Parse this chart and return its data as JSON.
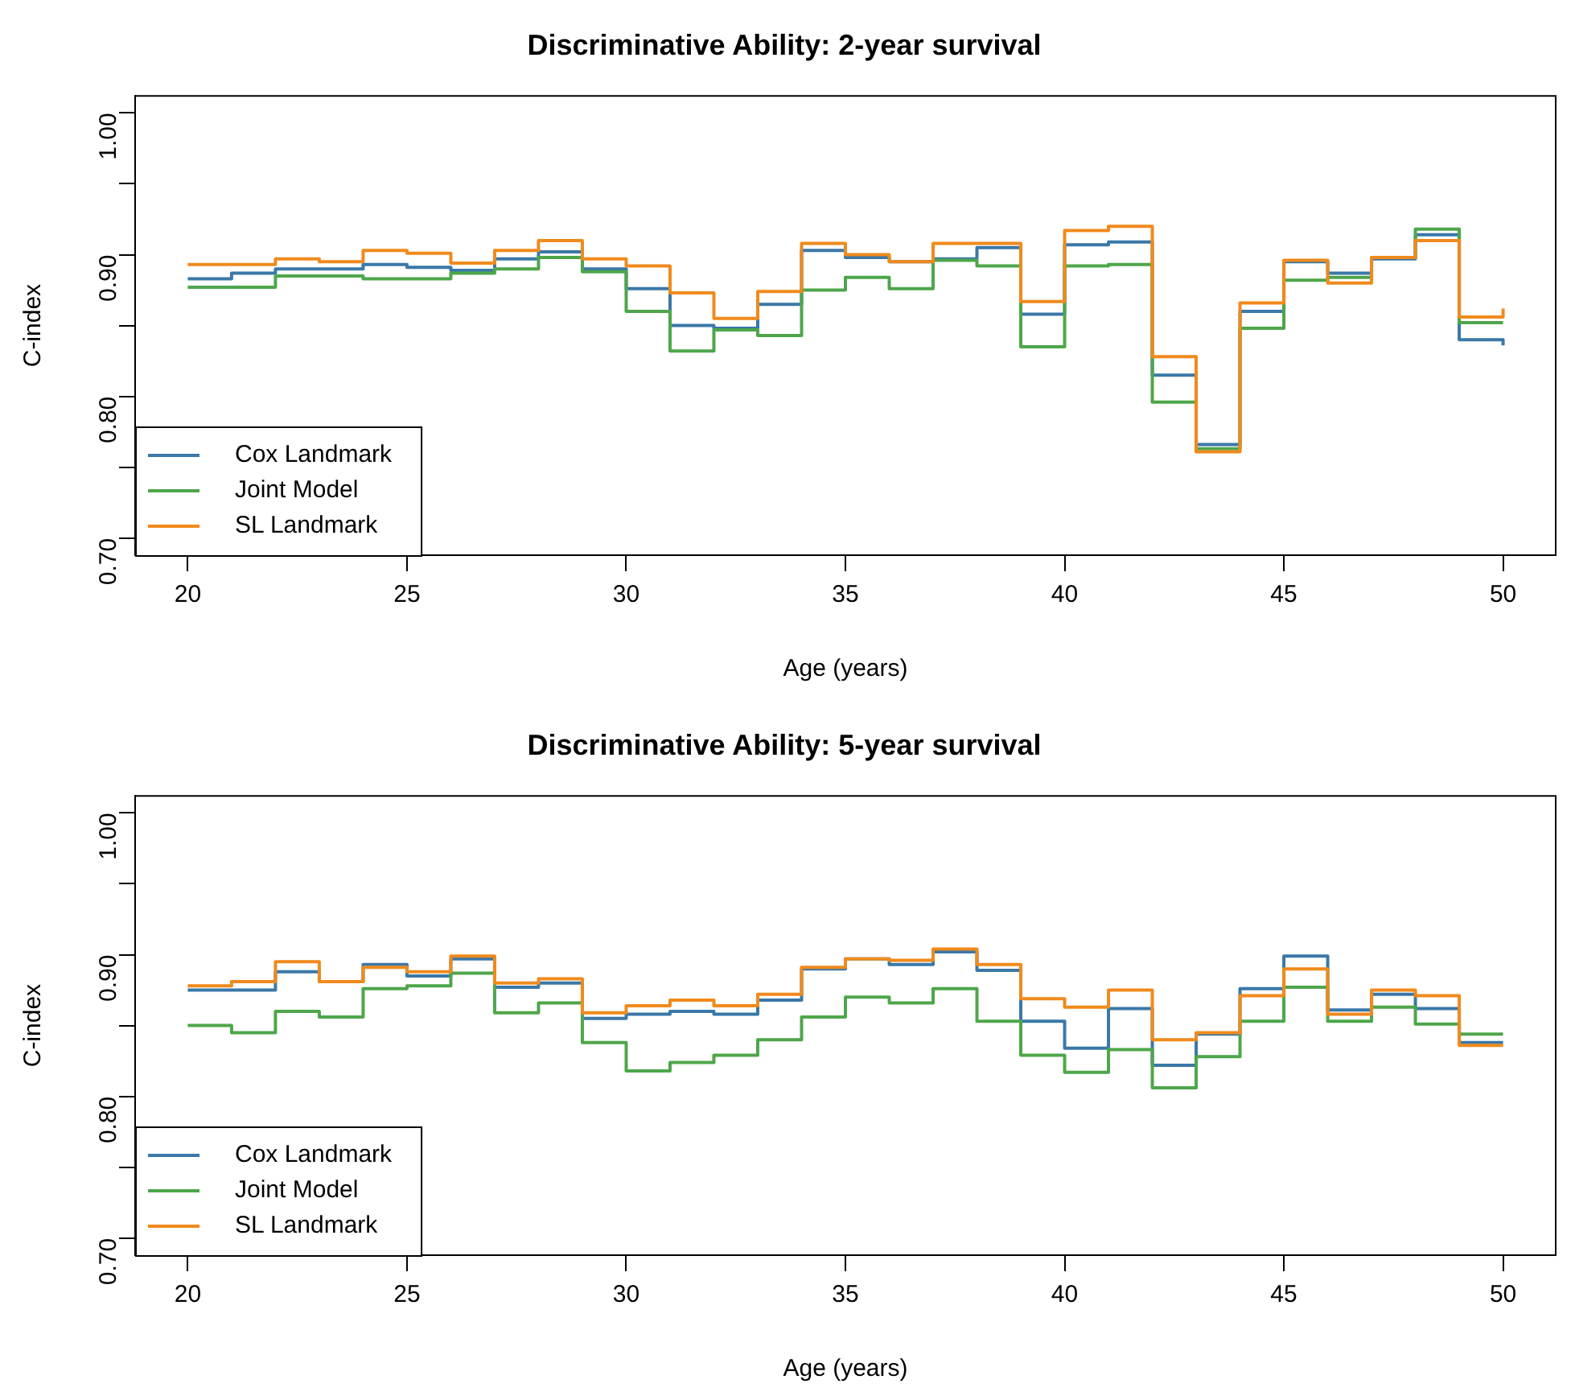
{
  "chart_data": [
    {
      "type": "step",
      "title": "Discriminative Ability: 2-year survival",
      "xlabel": "Age (years)",
      "ylabel": "C-index",
      "x": [
        20,
        21,
        22,
        23,
        24,
        25,
        26,
        27,
        28,
        29,
        30,
        31,
        32,
        33,
        34,
        35,
        36,
        37,
        38,
        39,
        40,
        41,
        42,
        43,
        44,
        45,
        46,
        47,
        48,
        49,
        50
      ],
      "series": [
        {
          "name": "Cox Landmark",
          "color": "#3a78a8",
          "values": [
            0.883,
            0.887,
            0.89,
            0.89,
            0.893,
            0.891,
            0.889,
            0.897,
            0.902,
            0.89,
            0.876,
            0.85,
            0.848,
            0.865,
            0.903,
            0.898,
            0.895,
            0.897,
            0.905,
            0.858,
            0.907,
            0.909,
            0.815,
            0.766,
            0.86,
            0.895,
            0.887,
            0.897,
            0.914,
            0.84,
            0.836
          ]
        },
        {
          "name": "Joint Model",
          "color": "#4ea64a",
          "values": [
            0.877,
            0.877,
            0.885,
            0.885,
            0.883,
            0.883,
            0.887,
            0.89,
            0.898,
            0.888,
            0.86,
            0.832,
            0.847,
            0.843,
            0.875,
            0.884,
            0.876,
            0.896,
            0.892,
            0.835,
            0.892,
            0.893,
            0.796,
            0.763,
            0.848,
            0.882,
            0.884,
            0.898,
            0.918,
            0.852,
            0.852
          ]
        },
        {
          "name": "SL Landmark",
          "color": "#f08a1c",
          "values": [
            0.893,
            0.893,
            0.897,
            0.895,
            0.903,
            0.901,
            0.894,
            0.903,
            0.91,
            0.897,
            0.892,
            0.873,
            0.855,
            0.874,
            0.908,
            0.9,
            0.895,
            0.908,
            0.908,
            0.867,
            0.917,
            0.92,
            0.828,
            0.761,
            0.866,
            0.896,
            0.88,
            0.898,
            0.91,
            0.856,
            0.862
          ]
        }
      ],
      "xlim": [
        18.8,
        51.2
      ],
      "ylim": [
        0.688,
        1.012
      ],
      "xticks": [
        20,
        25,
        30,
        35,
        40,
        45,
        50
      ],
      "yticks": [
        {
          "value": 0.7,
          "label": "0.70"
        },
        {
          "value": 0.75,
          "label": null
        },
        {
          "value": 0.8,
          "label": "0.80"
        },
        {
          "value": 0.85,
          "label": null
        },
        {
          "value": 0.9,
          "label": "0.90"
        },
        {
          "value": 0.95,
          "label": null
        },
        {
          "value": 1.0,
          "label": "1.00"
        }
      ],
      "legend": "bottom left"
    },
    {
      "type": "step",
      "title": "Discriminative Ability: 5-year survival",
      "xlabel": "Age (years)",
      "ylabel": "C-index",
      "x": [
        20,
        21,
        22,
        23,
        24,
        25,
        26,
        27,
        28,
        29,
        30,
        31,
        32,
        33,
        34,
        35,
        36,
        37,
        38,
        39,
        40,
        41,
        42,
        43,
        44,
        45,
        46,
        47,
        48,
        49,
        50
      ],
      "series": [
        {
          "name": "Cox Landmark",
          "color": "#3a78a8",
          "values": [
            0.875,
            0.875,
            0.888,
            0.881,
            0.893,
            0.885,
            0.897,
            0.877,
            0.88,
            0.855,
            0.858,
            0.86,
            0.858,
            0.868,
            0.89,
            0.897,
            0.893,
            0.902,
            0.889,
            0.853,
            0.834,
            0.862,
            0.822,
            0.844,
            0.876,
            0.899,
            0.861,
            0.872,
            0.862,
            0.838,
            0.838
          ]
        },
        {
          "name": "Joint Model",
          "color": "#4ea64a",
          "values": [
            0.85,
            0.845,
            0.86,
            0.856,
            0.876,
            0.878,
            0.887,
            0.859,
            0.866,
            0.838,
            0.818,
            0.824,
            0.829,
            0.84,
            0.856,
            0.87,
            0.866,
            0.876,
            0.853,
            0.829,
            0.817,
            0.833,
            0.806,
            0.828,
            0.853,
            0.877,
            0.853,
            0.863,
            0.851,
            0.844,
            0.844
          ]
        },
        {
          "name": "SL Landmark",
          "color": "#f08a1c",
          "values": [
            0.878,
            0.881,
            0.895,
            0.881,
            0.891,
            0.888,
            0.899,
            0.88,
            0.883,
            0.859,
            0.864,
            0.868,
            0.864,
            0.872,
            0.891,
            0.897,
            0.896,
            0.904,
            0.893,
            0.869,
            0.863,
            0.875,
            0.84,
            0.845,
            0.871,
            0.89,
            0.858,
            0.875,
            0.871,
            0.836,
            0.836
          ]
        }
      ],
      "xlim": [
        18.8,
        51.2
      ],
      "ylim": [
        0.688,
        1.012
      ],
      "xticks": [
        20,
        25,
        30,
        35,
        40,
        45,
        50
      ],
      "yticks": [
        {
          "value": 0.7,
          "label": "0.70"
        },
        {
          "value": 0.75,
          "label": null
        },
        {
          "value": 0.8,
          "label": "0.80"
        },
        {
          "value": 0.85,
          "label": null
        },
        {
          "value": 0.9,
          "label": "0.90"
        },
        {
          "value": 0.95,
          "label": null
        },
        {
          "value": 1.0,
          "label": "1.00"
        }
      ],
      "legend": "bottom left"
    }
  ]
}
